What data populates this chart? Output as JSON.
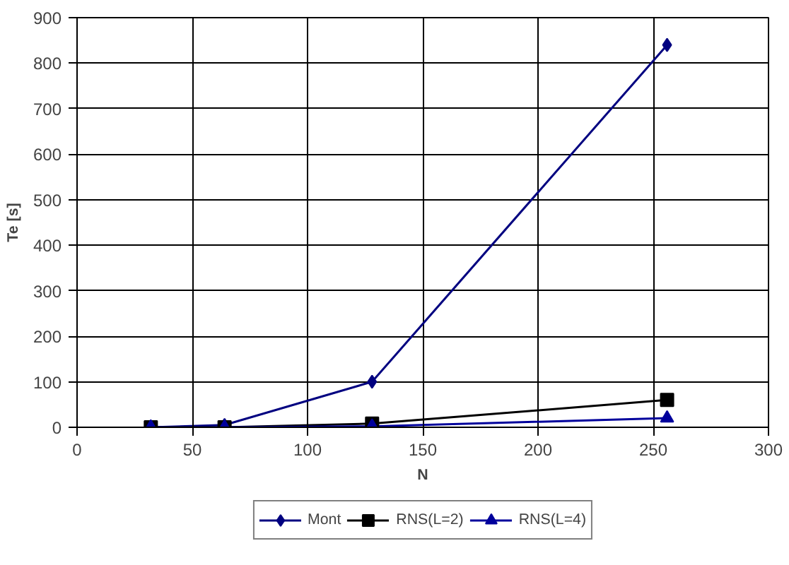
{
  "chart_data": {
    "type": "line",
    "xlabel": "N",
    "ylabel": "Te [s]",
    "x": [
      32,
      64,
      128,
      256
    ],
    "series": [
      {
        "name": "Mont",
        "color": "#000080",
        "marker": "diamond",
        "values": [
          0,
          5,
          100,
          840
        ]
      },
      {
        "name": "RNS(L=2)",
        "color": "#000000",
        "marker": "square",
        "values": [
          0,
          0,
          8,
          60
        ]
      },
      {
        "name": "RNS(L=4)",
        "color": "#00009c",
        "marker": "triangle",
        "values": [
          0,
          0,
          2,
          20
        ]
      }
    ],
    "xlim": [
      0,
      300
    ],
    "xticks": [
      0,
      50,
      100,
      150,
      200,
      250,
      300
    ],
    "ylim": [
      0,
      900
    ],
    "yticks": [
      0,
      100,
      200,
      300,
      400,
      500,
      600,
      700,
      800,
      900
    ],
    "grid": true,
    "legend": "bottom",
    "line_style": "solid"
  }
}
